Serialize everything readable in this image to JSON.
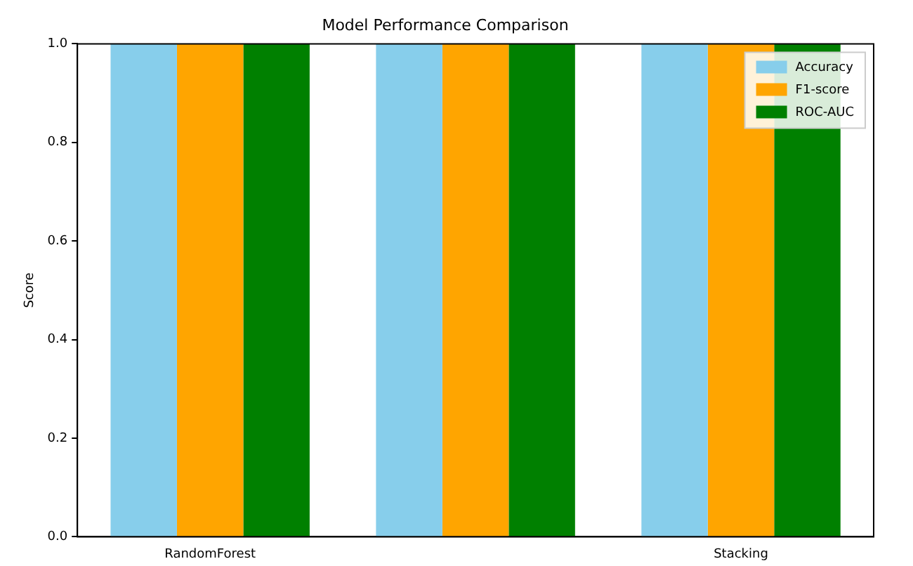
{
  "chart_data": {
    "type": "bar",
    "title": "Model Performance Comparison",
    "ylabel": "Score",
    "categories": [
      "RandomForest",
      null,
      "Stacking"
    ],
    "series": [
      {
        "name": "Accuracy",
        "color": "#87ceeb",
        "values": [
          1.0,
          1.0,
          1.0
        ]
      },
      {
        "name": "F1-score",
        "color": "#ffa500",
        "values": [
          1.0,
          1.0,
          1.0
        ]
      },
      {
        "name": "ROC-AUC",
        "color": "#008000",
        "values": [
          1.0,
          1.0,
          1.0
        ]
      }
    ],
    "ylim": [
      0,
      1
    ],
    "yticks": [
      {
        "value": 0,
        "label": "0.0"
      },
      {
        "value": 0.2,
        "label": "0.2"
      },
      {
        "value": 0.4,
        "label": "0.4"
      },
      {
        "value": 0.6,
        "label": "0.6"
      },
      {
        "value": 0.8,
        "label": "0.8"
      },
      {
        "value": 1,
        "label": "1.0"
      }
    ],
    "grid": false,
    "legend": "top right"
  }
}
